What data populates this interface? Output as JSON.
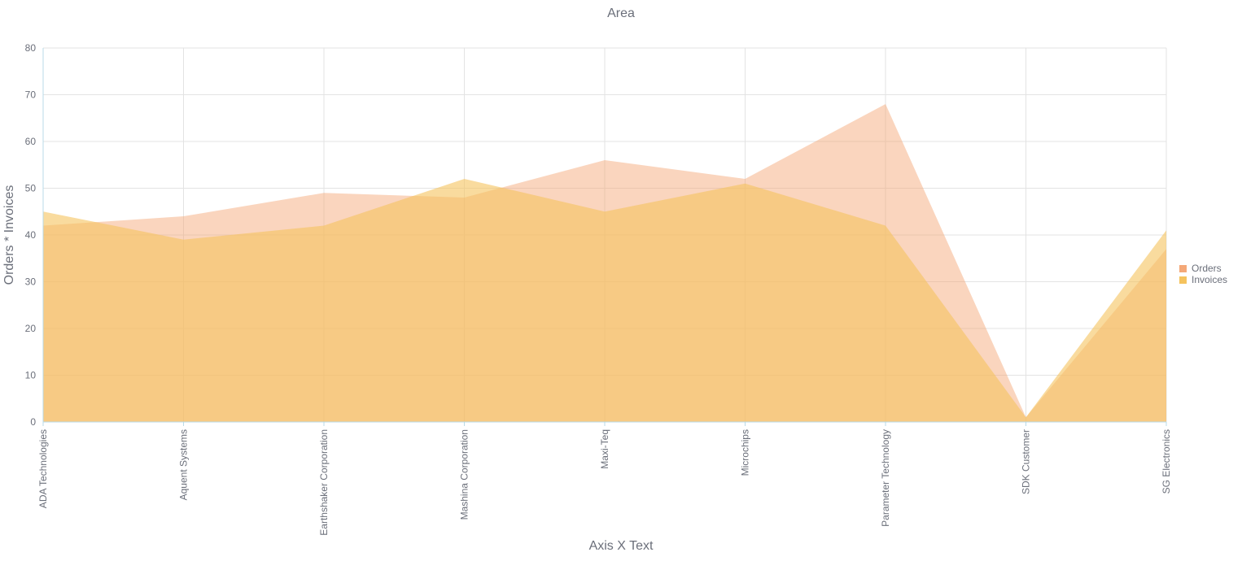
{
  "chart_data": {
    "type": "area",
    "title": "Area",
    "xlabel": "Axis X Text",
    "ylabel": "Orders * Invoices",
    "ylim": [
      0,
      80
    ],
    "yticks": [
      0,
      10,
      20,
      30,
      40,
      50,
      60,
      70,
      80
    ],
    "categories": [
      "ADA Technologies",
      "Aquent Systems",
      "Earthshaker Corporation",
      "Mashina Corporation",
      "Maxi-Teq",
      "Microchips",
      "Parameter Technology",
      "SDK Customer",
      "SG Electronics"
    ],
    "series": [
      {
        "name": "Orders",
        "color": "#f4a878",
        "values": [
          42,
          44,
          49,
          48,
          56,
          52,
          68,
          1,
          37
        ]
      },
      {
        "name": "Invoices",
        "color": "#f5c35e",
        "values": [
          45,
          39,
          42,
          52,
          45,
          51,
          42,
          1,
          41
        ]
      }
    ],
    "grid": true,
    "legend_position": "right"
  }
}
